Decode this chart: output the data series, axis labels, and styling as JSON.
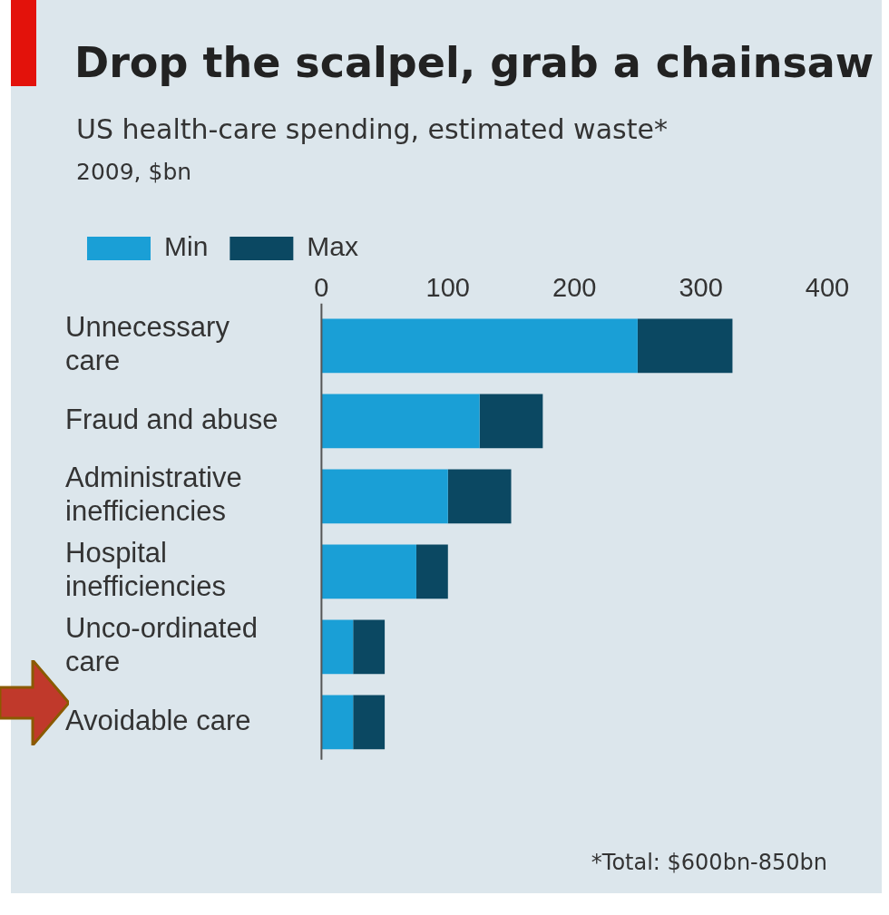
{
  "chart_data": {
    "type": "bar",
    "orientation": "horizontal",
    "stacked": true,
    "title": "Drop the scalpel, grab a chainsaw",
    "subtitle": "US health-care spending, estimated waste*",
    "annotations": [
      "2009, $bn",
      "*Total: $600bn-850bn"
    ],
    "categories": [
      "Unnecessary care",
      "Fraud and abuse",
      "Administrative inefficiencies",
      "Hospital inefficiencies",
      "Unco-ordinated care",
      "Avoidable care"
    ],
    "series": [
      {
        "name": "Min",
        "color": "#1a9fd6",
        "values": [
          250,
          125,
          100,
          75,
          25,
          25
        ]
      },
      {
        "name": "Max",
        "color": "#0b4862",
        "values": [
          75,
          50,
          50,
          25,
          25,
          25
        ]
      }
    ],
    "xlim": [
      0,
      400
    ],
    "xticks": [
      0,
      100,
      200,
      300,
      400
    ],
    "grid": false,
    "legend": "top left"
  }
}
